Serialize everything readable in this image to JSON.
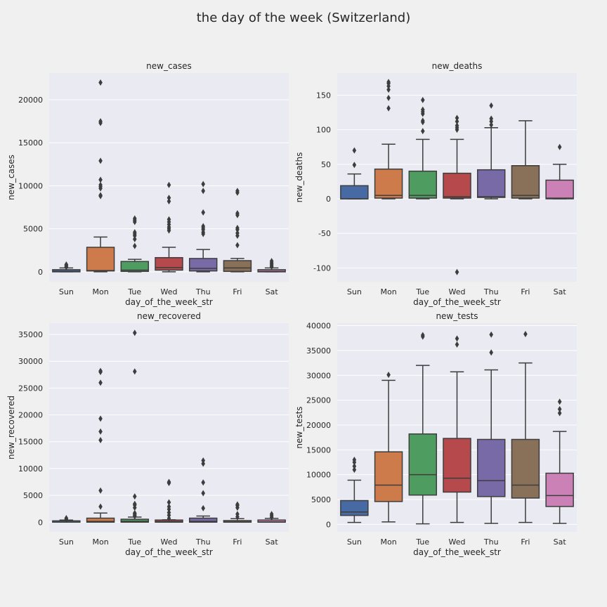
{
  "figure": {
    "title": "the day of the week (Switzerland)",
    "background": "#f0f0f0",
    "plot_background": "#eaeaf2",
    "grid_color": "#ffffff",
    "line_color": "#3d3d3d"
  },
  "chart_data": [
    {
      "type": "box",
      "title": "new_cases",
      "xlabel": "day_of_the_week_str",
      "ylabel": "new_cases",
      "categories": [
        "Sun",
        "Mon",
        "Tue",
        "Wed",
        "Thu",
        "Fri",
        "Sat"
      ],
      "colors": [
        "#4c72b0",
        "#dd8452",
        "#55a868",
        "#c44e52",
        "#8172b3",
        "#937860",
        "#da8bc3"
      ],
      "ylim": [
        -1150,
        23100
      ],
      "yticks": [
        0,
        5000,
        10000,
        15000,
        20000
      ],
      "boxes": [
        {
          "whisker_low": 0,
          "q1": 0,
          "median": 50,
          "q3": 250,
          "whisker_high": 450,
          "outliers": [
            550,
            650,
            750,
            850
          ]
        },
        {
          "whisker_low": 0,
          "q1": 100,
          "median": 150,
          "q3": 2850,
          "whisker_high": 4050,
          "outliers": [
            8800,
            8900,
            9700,
            9900,
            10100,
            10700,
            12900,
            17300,
            17500,
            22000
          ]
        },
        {
          "whisker_low": 0,
          "q1": 50,
          "median": 200,
          "q3": 1200,
          "whisker_high": 1450,
          "outliers": [
            3000,
            3800,
            4200,
            4400,
            4600,
            5800,
            6000,
            6200
          ]
        },
        {
          "whisker_low": 0,
          "q1": 200,
          "median": 500,
          "q3": 1650,
          "whisker_high": 2850,
          "outliers": [
            4800,
            5000,
            5200,
            5500,
            5800,
            6100,
            8200,
            8600,
            10100
          ]
        },
        {
          "whisker_low": 0,
          "q1": 100,
          "median": 400,
          "q3": 1550,
          "whisker_high": 2600,
          "outliers": [
            4400,
            4600,
            4900,
            5100,
            5300,
            6900,
            9400,
            10200
          ]
        },
        {
          "whisker_low": 0,
          "q1": 50,
          "median": 450,
          "q3": 1300,
          "whisker_high": 1550,
          "outliers": [
            3100,
            4200,
            4500,
            4900,
            5100,
            6600,
            6800,
            9200,
            9400
          ]
        },
        {
          "whisker_low": 0,
          "q1": 0,
          "median": 50,
          "q3": 250,
          "whisker_high": 450,
          "outliers": [
            600,
            750,
            900,
            1050,
            1250
          ]
        }
      ]
    },
    {
      "type": "box",
      "title": "new_deaths",
      "xlabel": "day_of_the_week_str",
      "ylabel": "new_deaths",
      "categories": [
        "Sun",
        "Mon",
        "Tue",
        "Wed",
        "Thu",
        "Fri",
        "Sat"
      ],
      "colors": [
        "#4c72b0",
        "#dd8452",
        "#55a868",
        "#c44e52",
        "#8172b3",
        "#937860",
        "#da8bc3"
      ],
      "ylim": [
        -120,
        182
      ],
      "yticks": [
        -100,
        -50,
        0,
        50,
        100,
        150
      ],
      "boxes": [
        {
          "whisker_low": 0,
          "q1": 0,
          "median": 0,
          "q3": 19,
          "whisker_high": 36,
          "outliers": [
            49,
            70
          ]
        },
        {
          "whisker_low": 0,
          "q1": 1,
          "median": 5,
          "q3": 43,
          "whisker_high": 79,
          "outliers": [
            131,
            146,
            158,
            163,
            167,
            169
          ]
        },
        {
          "whisker_low": 0,
          "q1": 1,
          "median": 5,
          "q3": 40,
          "whisker_high": 86,
          "outliers": [
            98,
            111,
            113,
            123,
            126,
            129,
            143
          ]
        },
        {
          "whisker_low": 0,
          "q1": 1,
          "median": 3,
          "q3": 37,
          "whisker_high": 86,
          "outliers": [
            -106,
            100,
            103,
            106,
            112,
            117
          ]
        },
        {
          "whisker_low": 0,
          "q1": 2,
          "median": 3,
          "q3": 42,
          "whisker_high": 103,
          "outliers": [
            107,
            112,
            116,
            135
          ]
        },
        {
          "whisker_low": 0,
          "q1": 1,
          "median": 5,
          "q3": 48,
          "whisker_high": 113,
          "outliers": []
        },
        {
          "whisker_low": 0,
          "q1": 0,
          "median": 1,
          "q3": 27,
          "whisker_high": 50,
          "outliers": [
            75
          ]
        }
      ]
    },
    {
      "type": "box",
      "title": "new_recovered",
      "xlabel": "day_of_the_week_str",
      "ylabel": "new_recovered",
      "categories": [
        "Sun",
        "Mon",
        "Tue",
        "Wed",
        "Thu",
        "Fri",
        "Sat"
      ],
      "colors": [
        "#4c72b0",
        "#dd8452",
        "#55a868",
        "#c44e52",
        "#8172b3",
        "#937860",
        "#da8bc3"
      ],
      "ylim": [
        -1800,
        37100
      ],
      "yticks": [
        0,
        5000,
        10000,
        15000,
        20000,
        25000,
        30000,
        35000
      ],
      "boxes": [
        {
          "whisker_low": 0,
          "q1": 0,
          "median": 0,
          "q3": 250,
          "whisker_high": 400,
          "outliers": [
            550,
            750
          ]
        },
        {
          "whisker_low": 0,
          "q1": 0,
          "median": 150,
          "q3": 750,
          "whisker_high": 1700,
          "outliers": [
            2900,
            5900,
            15300,
            16900,
            19300,
            26000,
            28000,
            28200
          ]
        },
        {
          "whisker_low": 0,
          "q1": 0,
          "median": 150,
          "q3": 550,
          "whisker_high": 950,
          "outliers": [
            1100,
            1300,
            1500,
            1700,
            2700,
            3200,
            3400,
            4800,
            28100,
            35300
          ]
        },
        {
          "whisker_low": 0,
          "q1": 0,
          "median": 100,
          "q3": 400,
          "whisker_high": 450,
          "outliers": [
            700,
            1300,
            1800,
            2400,
            2900,
            3700,
            7300,
            7500
          ]
        },
        {
          "whisker_low": 0,
          "q1": 0,
          "median": 150,
          "q3": 750,
          "whisker_high": 1150,
          "outliers": [
            2600,
            5400,
            7400,
            10900,
            11500
          ]
        },
        {
          "whisker_low": 0,
          "q1": 0,
          "median": 50,
          "q3": 300,
          "whisker_high": 650,
          "outliers": [
            1000,
            1500,
            2700,
            3100,
            3300
          ]
        },
        {
          "whisker_low": 0,
          "q1": 0,
          "median": 50,
          "q3": 400,
          "whisker_high": 700,
          "outliers": [
            900,
            1200,
            1500
          ]
        }
      ]
    },
    {
      "type": "box",
      "title": "new_tests",
      "xlabel": "day_of_the_week_str",
      "ylabel": "new_tests",
      "categories": [
        "Sun",
        "Mon",
        "Tue",
        "Wed",
        "Thu",
        "Fri",
        "Sat"
      ],
      "colors": [
        "#4c72b0",
        "#dd8452",
        "#55a868",
        "#c44e52",
        "#8172b3",
        "#937860",
        "#da8bc3"
      ],
      "ylim": [
        -1500,
        40500
      ],
      "yticks": [
        0,
        5000,
        10000,
        15000,
        20000,
        25000,
        30000,
        35000,
        40000
      ],
      "boxes": [
        {
          "whisker_low": 400,
          "q1": 1800,
          "median": 2500,
          "q3": 4800,
          "whisker_high": 8900,
          "outliers": [
            11000,
            11700,
            12500,
            13000
          ]
        },
        {
          "whisker_low": 500,
          "q1": 4600,
          "median": 7900,
          "q3": 14600,
          "whisker_high": 29000,
          "outliers": [
            30100
          ]
        },
        {
          "whisker_low": 100,
          "q1": 5900,
          "median": 10000,
          "q3": 18200,
          "whisker_high": 32000,
          "outliers": [
            37800,
            38100
          ]
        },
        {
          "whisker_low": 400,
          "q1": 6500,
          "median": 9300,
          "q3": 17300,
          "whisker_high": 30700,
          "outliers": [
            36200,
            37400
          ]
        },
        {
          "whisker_low": 200,
          "q1": 5600,
          "median": 8800,
          "q3": 17100,
          "whisker_high": 31100,
          "outliers": [
            34600,
            38200
          ]
        },
        {
          "whisker_low": 400,
          "q1": 5300,
          "median": 7900,
          "q3": 17100,
          "whisker_high": 32500,
          "outliers": [
            38300
          ]
        },
        {
          "whisker_low": 200,
          "q1": 3600,
          "median": 5800,
          "q3": 10300,
          "whisker_high": 18700,
          "outliers": [
            22400,
            23200,
            24700
          ]
        }
      ]
    }
  ]
}
